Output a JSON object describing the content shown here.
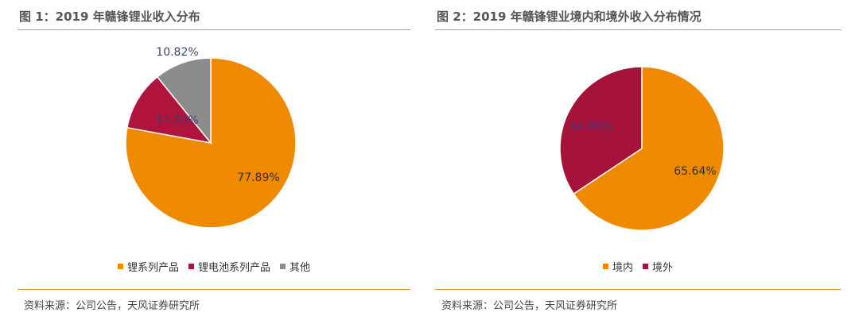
{
  "source_note": "资料来源：公司公告，天风证券研究所",
  "chart_data": [
    {
      "type": "pie",
      "title": "图 1：2019 年赣锋锂业收入分布",
      "categories": [
        "锂系列产品",
        "锂电池系列产品",
        "其他"
      ],
      "values": [
        77.89,
        11.29,
        10.82
      ],
      "value_labels": [
        "77.89%",
        "11.29%",
        "10.82%"
      ],
      "colors": [
        "#ef8a00",
        "#b0133b",
        "#8c8c8c"
      ],
      "label_colors": [
        "#333333",
        "#3a3a7a",
        "#3a4a6a"
      ],
      "legend_position": "bottom"
    },
    {
      "type": "pie",
      "title": "图 2：2019 年赣锋锂业境内和境外收入分布情况",
      "categories": [
        "境内",
        "境外"
      ],
      "values": [
        65.64,
        34.36
      ],
      "value_labels": [
        "65.64%",
        "34.36%"
      ],
      "colors": [
        "#ef8a00",
        "#a5133a"
      ],
      "label_colors": [
        "#333333",
        "#3a3a7a"
      ],
      "legend_position": "bottom"
    }
  ]
}
